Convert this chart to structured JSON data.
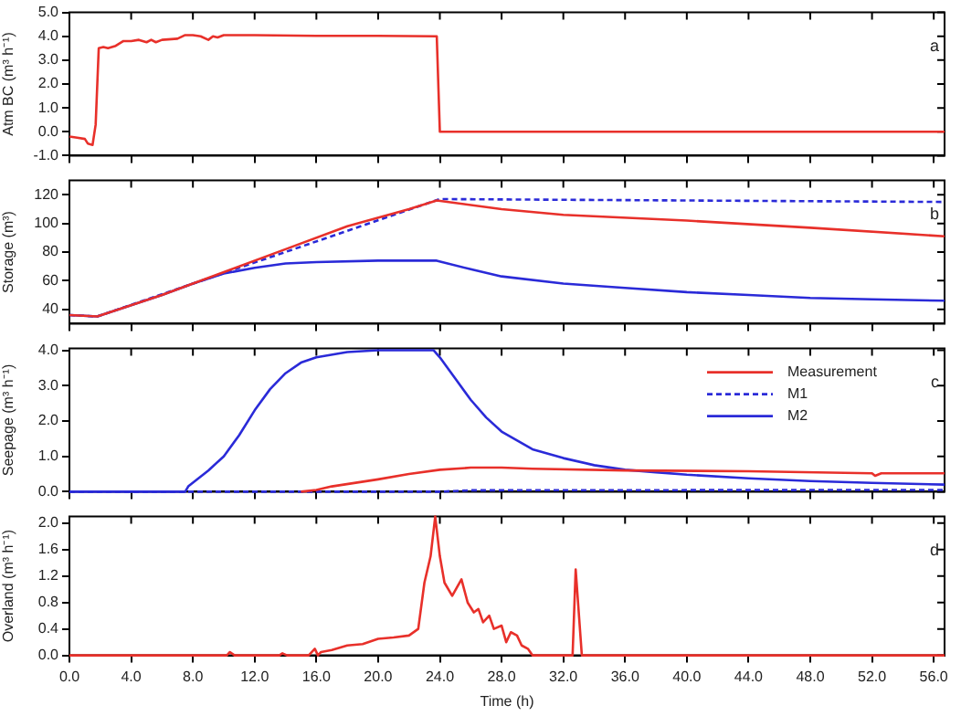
{
  "chart_data": [
    {
      "type": "line",
      "ylabel": "Atm BC (m³ h⁻¹)",
      "annotations": [
        "a"
      ],
      "tick_labels": "y",
      "grid": false,
      "marker": "none",
      "xlim": [
        0,
        56.7
      ],
      "xticks": [
        0,
        4,
        8,
        12,
        16,
        20,
        24,
        28,
        32,
        36,
        40,
        44,
        48,
        52,
        56
      ],
      "ylim": [
        -1,
        5
      ],
      "yticks": [
        {
          "value": -1,
          "label": "-1.0"
        },
        {
          "value": 0,
          "label": "0.0"
        },
        {
          "value": 1,
          "label": "1.0"
        },
        {
          "value": 2,
          "label": "2.0"
        },
        {
          "value": 3,
          "label": "3.0"
        },
        {
          "value": 4,
          "label": "4.0"
        },
        {
          "value": 5,
          "label": "5.0"
        }
      ],
      "series": [
        {
          "color": "#e8302a",
          "x": [
            0,
            0.5,
            1.0,
            1.2,
            1.5,
            1.7,
            1.9,
            2.2,
            2.5,
            3,
            3.5,
            4,
            4.5,
            5,
            5.3,
            5.6,
            6,
            7,
            7.5,
            8,
            8.5,
            9,
            9.3,
            9.6,
            10,
            12,
            16,
            20,
            23.8,
            24,
            56.7
          ],
          "values": [
            -0.2,
            -0.25,
            -0.3,
            -0.5,
            -0.55,
            0.3,
            3.5,
            3.55,
            3.5,
            3.6,
            3.8,
            3.8,
            3.85,
            3.75,
            3.85,
            3.75,
            3.85,
            3.9,
            4.05,
            4.05,
            4.0,
            3.85,
            4.0,
            3.95,
            4.05,
            4.05,
            4.02,
            4.02,
            4.0,
            0,
            0
          ]
        }
      ]
    },
    {
      "type": "line",
      "ylabel": "Storage (m³)",
      "annotations": [
        "b"
      ],
      "tick_labels": "y",
      "grid": false,
      "marker": "none",
      "xlim": [
        0,
        56.7
      ],
      "xticks": [
        0,
        4,
        8,
        12,
        16,
        20,
        24,
        28,
        32,
        36,
        40,
        44,
        48,
        52,
        56
      ],
      "ylim": [
        30,
        130
      ],
      "yticks": [
        40,
        60,
        80,
        100,
        120
      ],
      "series": [
        {
          "color": "#e8302a",
          "x": [
            0,
            1.8,
            6,
            10,
            14,
            18,
            22,
            23.8,
            28,
            32,
            40,
            48,
            56.7
          ],
          "values": [
            36,
            35,
            50,
            66,
            82,
            98,
            110,
            116,
            110,
            106,
            102,
            97,
            91
          ]
        },
        {
          "color": "#2a2ad8",
          "line_style": "dashed",
          "x": [
            0,
            1.8,
            24,
            56.7
          ],
          "values": [
            36,
            35,
            117,
            115
          ]
        },
        {
          "color": "#2a2ad8",
          "x": [
            0,
            1.8,
            6,
            8,
            10,
            12,
            14,
            16,
            20,
            23.8,
            26,
            28,
            32,
            36,
            40,
            44,
            48,
            52,
            56.7
          ],
          "values": [
            36,
            35,
            50,
            58,
            65,
            69,
            72,
            73,
            74,
            74,
            68,
            63,
            58,
            55,
            52,
            50,
            48,
            47,
            46
          ]
        }
      ]
    },
    {
      "type": "line",
      "ylabel": "Seepage (m³ h⁻¹)",
      "annotations": [
        "c"
      ],
      "tick_labels": "y",
      "grid": false,
      "marker": "none",
      "legend": "top right",
      "xlim": [
        0,
        56.7
      ],
      "xticks": [
        0,
        4,
        8,
        12,
        16,
        20,
        24,
        28,
        32,
        36,
        40,
        44,
        48,
        52,
        56
      ],
      "ylim": [
        0,
        4.05
      ],
      "yticks": [
        {
          "value": 0,
          "label": "0.0"
        },
        {
          "value": 1,
          "label": "1.0"
        },
        {
          "value": 2,
          "label": "2.0"
        },
        {
          "value": 3,
          "label": "3.0"
        },
        {
          "value": 4,
          "label": "4.0"
        }
      ],
      "series": [
        {
          "name": "Measurement",
          "color": "#e8302a",
          "x": [
            15,
            16,
            17,
            20,
            22,
            24,
            26,
            28,
            30,
            36,
            44,
            52,
            52.2,
            52.6,
            56.7
          ],
          "values": [
            0,
            0.05,
            0.15,
            0.35,
            0.5,
            0.62,
            0.68,
            0.68,
            0.65,
            0.6,
            0.58,
            0.52,
            0.45,
            0.52,
            0.52
          ]
        },
        {
          "name": "M1",
          "color": "#2a2ad8",
          "line_style": "dashed",
          "x": [
            0,
            24,
            26,
            56.7
          ],
          "values": [
            0,
            0,
            0.04,
            0.05
          ]
        },
        {
          "name": "M2",
          "color": "#2a2ad8",
          "x": [
            0,
            7.5,
            7.7,
            9,
            10,
            11,
            12,
            13,
            14,
            15,
            16,
            18,
            20,
            23.6,
            24,
            25,
            26,
            27,
            28,
            30,
            32,
            34,
            36,
            38,
            40,
            44,
            48,
            52,
            56.7
          ],
          "values": [
            0,
            0,
            0.15,
            0.6,
            1.0,
            1.6,
            2.3,
            2.9,
            3.35,
            3.65,
            3.8,
            3.95,
            4.0,
            4.0,
            3.8,
            3.2,
            2.6,
            2.1,
            1.7,
            1.2,
            0.95,
            0.75,
            0.62,
            0.55,
            0.48,
            0.38,
            0.3,
            0.25,
            0.2
          ]
        }
      ]
    },
    {
      "type": "line",
      "ylabel": "Overland (m³ h⁻¹)",
      "xlabel": "Time (h)",
      "annotations": [
        "d"
      ],
      "grid": false,
      "marker": "none",
      "xlim": [
        0,
        56.7
      ],
      "xticks": [
        {
          "value": 0,
          "label": "0.0"
        },
        {
          "value": 4,
          "label": "4.0"
        },
        {
          "value": 8,
          "label": "8.0"
        },
        {
          "value": 12,
          "label": "12.0"
        },
        {
          "value": 16,
          "label": "16.0"
        },
        {
          "value": 20,
          "label": "20.0"
        },
        {
          "value": 24,
          "label": "24.0"
        },
        {
          "value": 28,
          "label": "28.0"
        },
        {
          "value": 32,
          "label": "32.0"
        },
        {
          "value": 36,
          "label": "36.0"
        },
        {
          "value": 40,
          "label": "40.0"
        },
        {
          "value": 44,
          "label": "44.0"
        },
        {
          "value": 48,
          "label": "48.0"
        },
        {
          "value": 52,
          "label": "52.0"
        },
        {
          "value": 56,
          "label": "56.0"
        }
      ],
      "ylim": [
        0,
        2.1
      ],
      "yticks": [
        {
          "value": 0,
          "label": "0.0"
        },
        {
          "value": 0.4,
          "label": "0.4"
        },
        {
          "value": 0.8,
          "label": "0.8"
        },
        {
          "value": 1.2,
          "label": "1.2"
        },
        {
          "value": 1.6,
          "label": "1.6"
        },
        {
          "value": 2.0,
          "label": "2.0"
        }
      ],
      "series": [
        {
          "color": "#e8302a",
          "x": [
            0,
            10.2,
            10.4,
            10.7,
            13.6,
            13.8,
            14.1,
            15.5,
            15.9,
            16.1,
            16.3,
            17,
            18,
            19,
            20,
            21,
            22,
            22.6,
            23,
            23.4,
            23.7,
            24,
            24.3,
            24.8,
            25.4,
            25.8,
            26.2,
            26.5,
            26.8,
            27.2,
            27.5,
            28,
            28.3,
            28.6,
            29,
            29.3,
            29.7,
            30,
            32.6,
            32.8,
            33.2,
            56.7
          ],
          "values": [
            0,
            0,
            0.05,
            0,
            0,
            0.03,
            0,
            0,
            0.1,
            0,
            0.05,
            0.08,
            0.15,
            0.17,
            0.25,
            0.27,
            0.3,
            0.4,
            1.1,
            1.5,
            2.1,
            1.5,
            1.1,
            0.9,
            1.15,
            0.8,
            0.65,
            0.7,
            0.5,
            0.6,
            0.4,
            0.45,
            0.2,
            0.35,
            0.3,
            0.15,
            0.1,
            0,
            0,
            1.3,
            0,
            0
          ]
        }
      ]
    }
  ]
}
